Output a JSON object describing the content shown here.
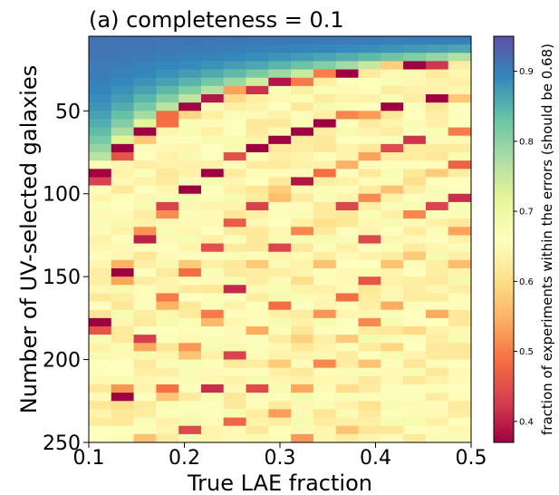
{
  "chart_data": {
    "type": "heatmap",
    "title": "(a) completeness = 0.1",
    "xlabel": "True LAE fraction",
    "ylabel": "Number of UV-selected galaxies",
    "xlim": [
      0.1,
      0.5
    ],
    "ylim": [
      250,
      5
    ],
    "y_inverted": true,
    "x_ticks": [
      0.1,
      0.2,
      0.3,
      0.4,
      0.5
    ],
    "x_tick_labels": [
      "0.1",
      "0.2",
      "0.3",
      "0.4",
      "0.5"
    ],
    "y_ticks": [
      50,
      100,
      150,
      200,
      250
    ],
    "y_tick_labels": [
      "50",
      "100",
      "150",
      "200",
      "250"
    ],
    "x_bin_width": 0.0235,
    "y_bin_height": 5,
    "colormap": "Spectral",
    "colorbar": {
      "label": "fraction of experiments within the errors (should be 0.68)",
      "range": [
        0.37,
        0.95
      ],
      "ticks": [
        0.4,
        0.5,
        0.6,
        0.7,
        0.8,
        0.9
      ],
      "tick_labels": [
        "0.4",
        "0.5",
        "0.6",
        "0.7",
        "0.8",
        "0.9"
      ],
      "position": "right"
    },
    "approximate_structure": "Values near 0.9 for small samples at low LAE fraction, a dark minimum (~0.38) band along N * f ~ 10, and secondary dips along N * f ~ 20, 30, 40 ...; values settle near 0.6-0.75 for large samples.",
    "model": {
      "high_value": 0.92,
      "low_value": 0.65,
      "decay_scale": 4,
      "transition_product": 10,
      "ridge_spacing": 10,
      "ridge_depth_base": 0.4,
      "noise_amplitude": 0.035
    }
  },
  "colors": {
    "spectral_stops": [
      [
        0.0,
        "#9e0142"
      ],
      [
        0.1,
        "#d53e4f"
      ],
      [
        0.2,
        "#f46d43"
      ],
      [
        0.3,
        "#fdae61"
      ],
      [
        0.4,
        "#fee08b"
      ],
      [
        0.5,
        "#ffffbf"
      ],
      [
        0.6,
        "#e6f598"
      ],
      [
        0.7,
        "#abdda4"
      ],
      [
        0.8,
        "#66c2a5"
      ],
      [
        0.9,
        "#3288bd"
      ],
      [
        1.0,
        "#5e4fa2"
      ]
    ],
    "background": "#ffffff",
    "axis": "#000000"
  }
}
